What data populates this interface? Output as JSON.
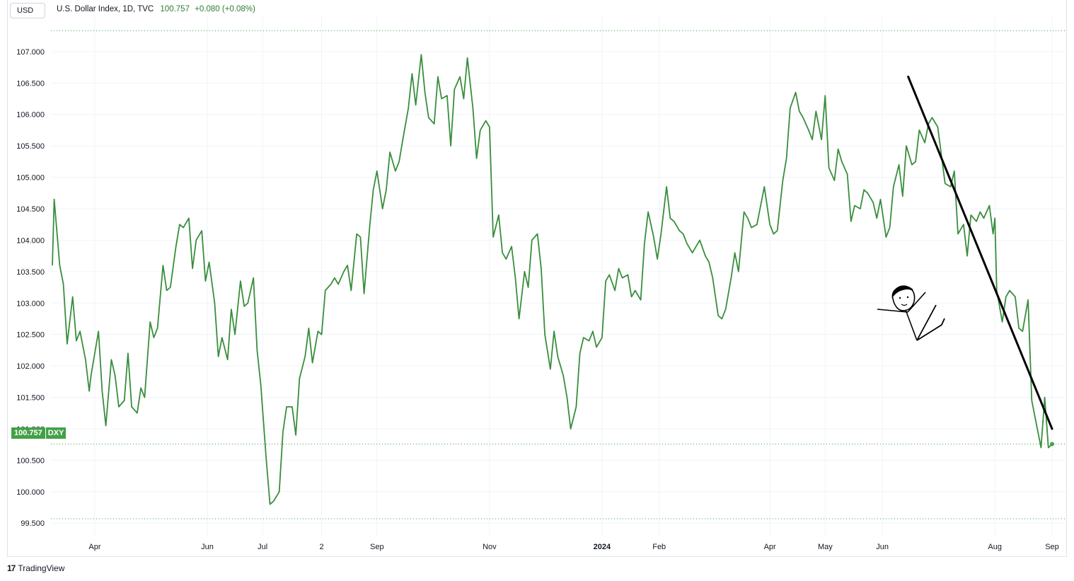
{
  "header": {
    "currency": "USD",
    "symbol_desc": "U.S. Dollar Index, 1D, TVC",
    "last": "100.757",
    "change": "+0.080 (+0.08%)"
  },
  "price_tag": {
    "price": "100.757",
    "symbol": "DXY"
  },
  "footer": {
    "logo": "17",
    "brand": "TradingView"
  },
  "colors": {
    "line": "#388e3c",
    "accent": "#43a047",
    "grid": "#f0f3fa",
    "trend": "#000000"
  },
  "chart_data": {
    "type": "line",
    "title": "U.S. Dollar Index, 1D, TVC",
    "ylim": [
      99.3,
      107.55
    ],
    "grid": true,
    "y_ticks": [
      "99.500",
      "100.000",
      "100.500",
      "101.000",
      "101.500",
      "102.000",
      "102.500",
      "103.000",
      "103.500",
      "104.000",
      "104.500",
      "105.000",
      "105.500",
      "106.000",
      "106.500",
      "107.000"
    ],
    "y_tick_values": [
      99.5,
      100.0,
      100.5,
      101.0,
      101.5,
      102.0,
      102.5,
      103.0,
      103.5,
      104.0,
      104.5,
      105.0,
      105.5,
      106.0,
      106.5,
      107.0
    ],
    "x_ticks": [
      {
        "label": "Apr",
        "x": "2023-04-01",
        "bold": false
      },
      {
        "label": "Jun",
        "x": "2023-06-01",
        "bold": false
      },
      {
        "label": "Jul",
        "x": "2023-07-01",
        "bold": false
      },
      {
        "label": "2",
        "x": "2023-08-02",
        "bold": false
      },
      {
        "label": "Sep",
        "x": "2023-09-01",
        "bold": false
      },
      {
        "label": "Nov",
        "x": "2023-11-01",
        "bold": false
      },
      {
        "label": "2024",
        "x": "2024-01-01",
        "bold": true
      },
      {
        "label": "Feb",
        "x": "2024-02-01",
        "bold": false
      },
      {
        "label": "Apr",
        "x": "2024-04-01",
        "bold": false
      },
      {
        "label": "May",
        "x": "2024-05-01",
        "bold": false
      },
      {
        "label": "Jun",
        "x": "2024-06-01",
        "bold": false
      },
      {
        "label": "Aug",
        "x": "2024-08-01",
        "bold": false
      },
      {
        "label": "Sep",
        "x": "2024-09-01",
        "bold": false
      }
    ],
    "dotted_levels": [
      107.33,
      100.757,
      99.57
    ],
    "series": [
      {
        "name": "DXY",
        "points": [
          [
            "2023-03-09",
            103.6
          ],
          [
            "2023-03-10",
            104.65
          ],
          [
            "2023-03-13",
            103.6
          ],
          [
            "2023-03-15",
            103.3
          ],
          [
            "2023-03-17",
            102.35
          ],
          [
            "2023-03-20",
            103.1
          ],
          [
            "2023-03-22",
            102.4
          ],
          [
            "2023-03-24",
            102.55
          ],
          [
            "2023-03-27",
            102.1
          ],
          [
            "2023-03-29",
            101.6
          ],
          [
            "2023-03-30",
            101.85
          ],
          [
            "2023-04-03",
            102.55
          ],
          [
            "2023-04-05",
            101.6
          ],
          [
            "2023-04-07",
            101.05
          ],
          [
            "2023-04-10",
            102.1
          ],
          [
            "2023-04-12",
            101.85
          ],
          [
            "2023-04-14",
            101.35
          ],
          [
            "2023-04-17",
            101.45
          ],
          [
            "2023-04-19",
            102.2
          ],
          [
            "2023-04-21",
            101.35
          ],
          [
            "2023-04-24",
            101.25
          ],
          [
            "2023-04-26",
            101.65
          ],
          [
            "2023-04-28",
            101.5
          ],
          [
            "2023-05-01",
            102.7
          ],
          [
            "2023-05-03",
            102.45
          ],
          [
            "2023-05-05",
            102.6
          ],
          [
            "2023-05-08",
            103.6
          ],
          [
            "2023-05-10",
            103.2
          ],
          [
            "2023-05-12",
            103.25
          ],
          [
            "2023-05-15",
            103.9
          ],
          [
            "2023-05-17",
            104.25
          ],
          [
            "2023-05-19",
            104.2
          ],
          [
            "2023-05-22",
            104.35
          ],
          [
            "2023-05-24",
            103.55
          ],
          [
            "2023-05-26",
            104.0
          ],
          [
            "2023-05-29",
            104.15
          ],
          [
            "2023-05-31",
            103.35
          ],
          [
            "2023-06-02",
            103.65
          ],
          [
            "2023-06-05",
            103.0
          ],
          [
            "2023-06-07",
            102.15
          ],
          [
            "2023-06-09",
            102.45
          ],
          [
            "2023-06-12",
            102.1
          ],
          [
            "2023-06-14",
            102.9
          ],
          [
            "2023-06-16",
            102.5
          ],
          [
            "2023-06-19",
            103.35
          ],
          [
            "2023-06-21",
            102.95
          ],
          [
            "2023-06-23",
            103.0
          ],
          [
            "2023-06-26",
            103.4
          ],
          [
            "2023-06-28",
            102.25
          ],
          [
            "2023-06-30",
            101.7
          ],
          [
            "2023-07-03",
            100.5
          ],
          [
            "2023-07-05",
            99.8
          ],
          [
            "2023-07-07",
            99.85
          ],
          [
            "2023-07-10",
            100.0
          ],
          [
            "2023-07-12",
            100.95
          ],
          [
            "2023-07-14",
            101.35
          ],
          [
            "2023-07-17",
            101.35
          ],
          [
            "2023-07-19",
            100.9
          ],
          [
            "2023-07-21",
            101.8
          ],
          [
            "2023-07-24",
            102.15
          ],
          [
            "2023-07-26",
            102.6
          ],
          [
            "2023-07-28",
            102.05
          ],
          [
            "2023-07-31",
            102.55
          ],
          [
            "2023-08-02",
            102.5
          ],
          [
            "2023-08-04",
            103.2
          ],
          [
            "2023-08-07",
            103.3
          ],
          [
            "2023-08-09",
            103.4
          ],
          [
            "2023-08-11",
            103.3
          ],
          [
            "2023-08-14",
            103.5
          ],
          [
            "2023-08-16",
            103.6
          ],
          [
            "2023-08-18",
            103.2
          ],
          [
            "2023-08-21",
            104.1
          ],
          [
            "2023-08-23",
            104.05
          ],
          [
            "2023-08-25",
            103.15
          ],
          [
            "2023-08-28",
            104.2
          ],
          [
            "2023-08-30",
            104.8
          ],
          [
            "2023-09-01",
            105.1
          ],
          [
            "2023-09-04",
            104.5
          ],
          [
            "2023-09-06",
            104.8
          ],
          [
            "2023-09-08",
            105.4
          ],
          [
            "2023-09-11",
            105.1
          ],
          [
            "2023-09-13",
            105.25
          ],
          [
            "2023-09-15",
            105.6
          ],
          [
            "2023-09-18",
            106.1
          ],
          [
            "2023-09-20",
            106.65
          ],
          [
            "2023-09-22",
            106.15
          ],
          [
            "2023-09-25",
            106.95
          ],
          [
            "2023-09-27",
            106.35
          ],
          [
            "2023-09-29",
            105.95
          ],
          [
            "2023-10-02",
            105.85
          ],
          [
            "2023-10-04",
            106.6
          ],
          [
            "2023-10-06",
            106.25
          ],
          [
            "2023-10-09",
            106.3
          ],
          [
            "2023-10-11",
            105.5
          ],
          [
            "2023-10-13",
            106.4
          ],
          [
            "2023-10-16",
            106.6
          ],
          [
            "2023-10-18",
            106.25
          ],
          [
            "2023-10-20",
            106.9
          ],
          [
            "2023-10-23",
            106.1
          ],
          [
            "2023-10-25",
            105.3
          ],
          [
            "2023-10-27",
            105.75
          ],
          [
            "2023-10-30",
            105.9
          ],
          [
            "2023-11-01",
            105.8
          ],
          [
            "2023-11-03",
            104.05
          ],
          [
            "2023-11-06",
            104.4
          ],
          [
            "2023-11-08",
            103.8
          ],
          [
            "2023-11-10",
            103.7
          ],
          [
            "2023-11-13",
            103.9
          ],
          [
            "2023-11-15",
            103.4
          ],
          [
            "2023-11-17",
            102.75
          ],
          [
            "2023-11-20",
            103.5
          ],
          [
            "2023-11-22",
            103.25
          ],
          [
            "2023-11-24",
            104.0
          ],
          [
            "2023-11-27",
            104.1
          ],
          [
            "2023-11-29",
            103.55
          ],
          [
            "2023-12-01",
            102.5
          ],
          [
            "2023-12-04",
            101.95
          ],
          [
            "2023-12-06",
            102.55
          ],
          [
            "2023-12-08",
            102.15
          ],
          [
            "2023-12-11",
            101.85
          ],
          [
            "2023-12-13",
            101.5
          ],
          [
            "2023-12-15",
            101.0
          ],
          [
            "2023-12-18",
            101.35
          ],
          [
            "2023-12-20",
            102.2
          ],
          [
            "2023-12-22",
            102.45
          ],
          [
            "2023-12-25",
            102.4
          ],
          [
            "2023-12-27",
            102.55
          ],
          [
            "2023-12-29",
            102.3
          ],
          [
            "2024-01-01",
            102.45
          ],
          [
            "2024-01-03",
            103.35
          ],
          [
            "2024-01-05",
            103.45
          ],
          [
            "2024-01-08",
            103.2
          ],
          [
            "2024-01-10",
            103.55
          ],
          [
            "2024-01-12",
            103.4
          ],
          [
            "2024-01-15",
            103.45
          ],
          [
            "2024-01-17",
            103.1
          ],
          [
            "2024-01-19",
            103.2
          ],
          [
            "2024-01-22",
            103.05
          ],
          [
            "2024-01-24",
            103.95
          ],
          [
            "2024-01-26",
            104.45
          ],
          [
            "2024-01-29",
            104.05
          ],
          [
            "2024-01-31",
            103.7
          ],
          [
            "2024-02-02",
            104.1
          ],
          [
            "2024-02-05",
            104.85
          ],
          [
            "2024-02-07",
            104.35
          ],
          [
            "2024-02-09",
            104.3
          ],
          [
            "2024-02-12",
            104.15
          ],
          [
            "2024-02-14",
            104.1
          ],
          [
            "2024-02-16",
            103.95
          ],
          [
            "2024-02-19",
            103.8
          ],
          [
            "2024-02-21",
            103.9
          ],
          [
            "2024-02-23",
            104.0
          ],
          [
            "2024-02-26",
            103.75
          ],
          [
            "2024-02-28",
            103.65
          ],
          [
            "2024-03-01",
            103.4
          ],
          [
            "2024-03-04",
            102.8
          ],
          [
            "2024-03-06",
            102.75
          ],
          [
            "2024-03-08",
            102.9
          ],
          [
            "2024-03-11",
            103.4
          ],
          [
            "2024-03-13",
            103.8
          ],
          [
            "2024-03-15",
            103.5
          ],
          [
            "2024-03-18",
            104.45
          ],
          [
            "2024-03-20",
            104.35
          ],
          [
            "2024-03-22",
            104.2
          ],
          [
            "2024-03-25",
            104.25
          ],
          [
            "2024-03-27",
            104.55
          ],
          [
            "2024-03-29",
            104.85
          ],
          [
            "2024-04-01",
            104.25
          ],
          [
            "2024-04-03",
            104.1
          ],
          [
            "2024-04-05",
            104.15
          ],
          [
            "2024-04-08",
            104.95
          ],
          [
            "2024-04-10",
            105.3
          ],
          [
            "2024-04-12",
            106.1
          ],
          [
            "2024-04-15",
            106.35
          ],
          [
            "2024-04-17",
            106.05
          ],
          [
            "2024-04-19",
            105.95
          ],
          [
            "2024-04-22",
            105.75
          ],
          [
            "2024-04-24",
            105.6
          ],
          [
            "2024-04-26",
            106.05
          ],
          [
            "2024-04-29",
            105.6
          ],
          [
            "2024-05-01",
            106.3
          ],
          [
            "2024-05-03",
            105.15
          ],
          [
            "2024-05-06",
            104.95
          ],
          [
            "2024-05-08",
            105.45
          ],
          [
            "2024-05-10",
            105.25
          ],
          [
            "2024-05-13",
            105.05
          ],
          [
            "2024-05-15",
            104.3
          ],
          [
            "2024-05-17",
            104.55
          ],
          [
            "2024-05-20",
            104.5
          ],
          [
            "2024-05-22",
            104.8
          ],
          [
            "2024-05-24",
            104.75
          ],
          [
            "2024-05-27",
            104.6
          ],
          [
            "2024-05-29",
            104.35
          ],
          [
            "2024-05-31",
            104.65
          ],
          [
            "2024-06-03",
            104.05
          ],
          [
            "2024-06-05",
            104.2
          ],
          [
            "2024-06-07",
            104.85
          ],
          [
            "2024-06-10",
            105.2
          ],
          [
            "2024-06-12",
            104.7
          ],
          [
            "2024-06-14",
            105.5
          ],
          [
            "2024-06-17",
            105.2
          ],
          [
            "2024-06-19",
            105.25
          ],
          [
            "2024-06-21",
            105.75
          ],
          [
            "2024-06-24",
            105.55
          ],
          [
            "2024-06-26",
            105.85
          ],
          [
            "2024-06-28",
            105.95
          ],
          [
            "2024-07-01",
            105.8
          ],
          [
            "2024-07-03",
            105.35
          ],
          [
            "2024-07-05",
            104.9
          ],
          [
            "2024-07-08",
            104.85
          ],
          [
            "2024-07-10",
            105.1
          ],
          [
            "2024-07-12",
            104.1
          ],
          [
            "2024-07-15",
            104.25
          ],
          [
            "2024-07-17",
            103.75
          ],
          [
            "2024-07-19",
            104.4
          ],
          [
            "2024-07-22",
            104.3
          ],
          [
            "2024-07-24",
            104.45
          ],
          [
            "2024-07-26",
            104.35
          ],
          [
            "2024-07-29",
            104.55
          ],
          [
            "2024-07-31",
            104.1
          ],
          [
            "2024-08-01",
            104.35
          ],
          [
            "2024-08-02",
            103.2
          ],
          [
            "2024-08-05",
            102.7
          ],
          [
            "2024-08-07",
            103.1
          ],
          [
            "2024-08-09",
            103.2
          ],
          [
            "2024-08-12",
            103.1
          ],
          [
            "2024-08-14",
            102.6
          ],
          [
            "2024-08-16",
            102.55
          ],
          [
            "2024-08-19",
            103.05
          ],
          [
            "2024-08-21",
            101.45
          ],
          [
            "2024-08-23",
            101.15
          ],
          [
            "2024-08-26",
            100.7
          ],
          [
            "2024-08-28",
            101.5
          ],
          [
            "2024-08-30",
            100.7
          ],
          [
            "2024-09-01",
            100.757
          ]
        ]
      }
    ],
    "trendline": [
      [
        "2024-06-15",
        106.6
      ],
      [
        "2024-09-01",
        101.0
      ]
    ]
  }
}
